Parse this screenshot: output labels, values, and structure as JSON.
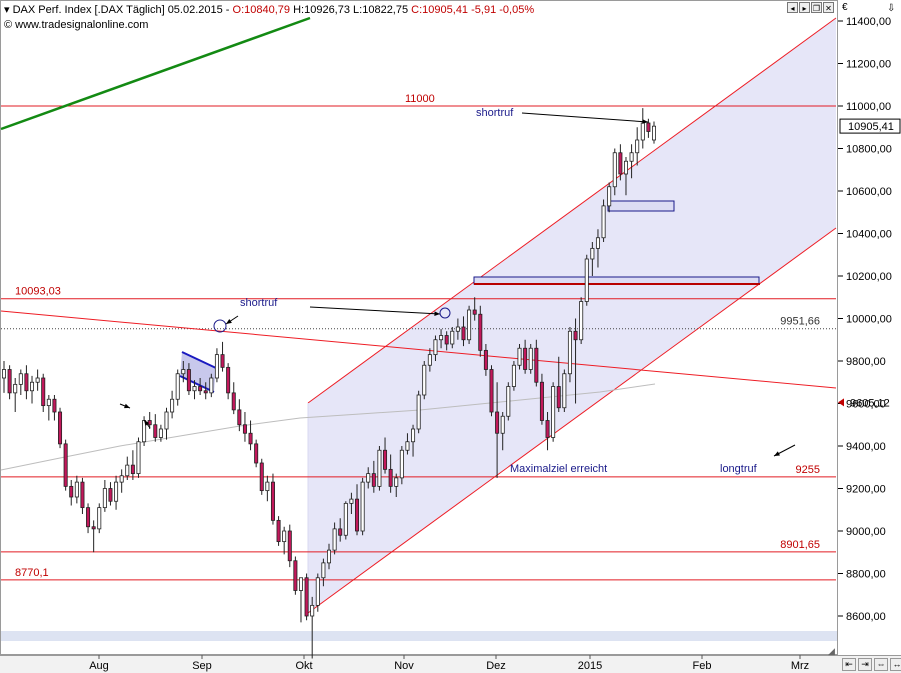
{
  "header": {
    "symbol": "DAX Perf. Index [.DAX Täglich]",
    "date": "05.02.2015",
    "open": "O:10840,79",
    "high": "H:10926,73",
    "low": "L:10822,75",
    "close": "C:10905,41",
    "change": "-5,91",
    "change_pct": "-0,05%",
    "credit": "© www.tradesignalonline.com"
  },
  "chart_data": {
    "type": "candlestick",
    "y_axis_ticks": [
      "11400,00",
      "11200,00",
      "11000,00",
      "10800,00",
      "10600,00",
      "10400,00",
      "10200,00",
      "10000,00",
      "9800,00",
      "9600,00",
      "9400,00",
      "9200,00",
      "9000,00",
      "8800,00",
      "8600,00"
    ],
    "y_tick_values": [
      11400,
      11200,
      11000,
      10800,
      10600,
      10400,
      10200,
      10000,
      9800,
      9600,
      9400,
      9200,
      9000,
      8800,
      8600
    ],
    "ylim": [
      8470,
      11590
    ],
    "x_axis_labels": [
      "Aug",
      "Sep",
      "Okt",
      "Nov",
      "Dez",
      "2015",
      "Feb",
      "Mrz"
    ],
    "last_price_label": "10905,41",
    "marker_label": "9605,12",
    "horizontal_levels": [
      {
        "label": "11000",
        "value": 11000
      },
      {
        "label": "10093,03",
        "value": 10093
      },
      {
        "label": "9951,66",
        "value": 9952
      },
      {
        "label": "9255",
        "value": 9255
      },
      {
        "label": "8901,65",
        "value": 8901.65
      },
      {
        "label": "8770,1",
        "value": 8770.1
      }
    ],
    "annotations": [
      "shortruf",
      "shortruf",
      "Maximalziel erreicht",
      "longtruf"
    ],
    "candles": [
      [
        9720,
        9800,
        9650,
        9760
      ],
      [
        9760,
        9780,
        9620,
        9650
      ],
      [
        9650,
        9720,
        9560,
        9690
      ],
      [
        9690,
        9760,
        9640,
        9740
      ],
      [
        9740,
        9780,
        9620,
        9660
      ],
      [
        9660,
        9730,
        9600,
        9700
      ],
      [
        9700,
        9760,
        9660,
        9720
      ],
      [
        9720,
        9740,
        9560,
        9590
      ],
      [
        9590,
        9640,
        9520,
        9620
      ],
      [
        9620,
        9640,
        9520,
        9560
      ],
      [
        9560,
        9580,
        9390,
        9410
      ],
      [
        9410,
        9430,
        9190,
        9210
      ],
      [
        9210,
        9240,
        9120,
        9160
      ],
      [
        9160,
        9260,
        9130,
        9230
      ],
      [
        9230,
        9250,
        9080,
        9110
      ],
      [
        9110,
        9130,
        8990,
        9020
      ],
      [
        9020,
        9050,
        8900,
        9010
      ],
      [
        9010,
        9130,
        8990,
        9110
      ],
      [
        9110,
        9240,
        9090,
        9200
      ],
      [
        9200,
        9230,
        9120,
        9140
      ],
      [
        9140,
        9260,
        9100,
        9230
      ],
      [
        9230,
        9290,
        9180,
        9260
      ],
      [
        9260,
        9350,
        9240,
        9310
      ],
      [
        9310,
        9380,
        9240,
        9270
      ],
      [
        9270,
        9440,
        9250,
        9420
      ],
      [
        9420,
        9540,
        9400,
        9520
      ],
      [
        9520,
        9560,
        9480,
        9500
      ],
      [
        9500,
        9550,
        9420,
        9440
      ],
      [
        9440,
        9500,
        9420,
        9480
      ],
      [
        9480,
        9580,
        9430,
        9560
      ],
      [
        9560,
        9660,
        9530,
        9620
      ],
      [
        9620,
        9760,
        9590,
        9740
      ],
      [
        9740,
        9800,
        9700,
        9760
      ],
      [
        9760,
        9790,
        9640,
        9660
      ],
      [
        9660,
        9710,
        9620,
        9680
      ],
      [
        9680,
        9720,
        9640,
        9660
      ],
      [
        9660,
        9700,
        9620,
        9650
      ],
      [
        9650,
        9740,
        9630,
        9720
      ],
      [
        9720,
        9860,
        9700,
        9830
      ],
      [
        9830,
        9890,
        9750,
        9770
      ],
      [
        9770,
        9790,
        9620,
        9650
      ],
      [
        9650,
        9700,
        9550,
        9570
      ],
      [
        9570,
        9620,
        9470,
        9500
      ],
      [
        9500,
        9560,
        9420,
        9460
      ],
      [
        9460,
        9520,
        9380,
        9410
      ],
      [
        9410,
        9430,
        9300,
        9320
      ],
      [
        9320,
        9340,
        9170,
        9190
      ],
      [
        9190,
        9260,
        9140,
        9230
      ],
      [
        9230,
        9270,
        9030,
        9050
      ],
      [
        9050,
        9070,
        8930,
        8950
      ],
      [
        8950,
        9020,
        8890,
        9000
      ],
      [
        9000,
        9030,
        8830,
        8860
      ],
      [
        8860,
        8880,
        8700,
        8720
      ],
      [
        8720,
        8780,
        8570,
        8780
      ],
      [
        8780,
        8800,
        8580,
        8600
      ],
      [
        8600,
        8690,
        8400,
        8650
      ],
      [
        8650,
        8800,
        8620,
        8780
      ],
      [
        8780,
        8870,
        8740,
        8850
      ],
      [
        8850,
        8940,
        8820,
        8910
      ],
      [
        8910,
        9040,
        8890,
        9010
      ],
      [
        9010,
        9060,
        8950,
        8980
      ],
      [
        8980,
        9140,
        8960,
        9130
      ],
      [
        9130,
        9180,
        9080,
        9150
      ],
      [
        9150,
        9220,
        8980,
        9000
      ],
      [
        9000,
        9250,
        8980,
        9230
      ],
      [
        9230,
        9300,
        9200,
        9270
      ],
      [
        9270,
        9330,
        9180,
        9210
      ],
      [
        9210,
        9400,
        9190,
        9380
      ],
      [
        9380,
        9440,
        9270,
        9290
      ],
      [
        9290,
        9360,
        9180,
        9210
      ],
      [
        9210,
        9270,
        9160,
        9250
      ],
      [
        9250,
        9400,
        9220,
        9380
      ],
      [
        9380,
        9460,
        9360,
        9420
      ],
      [
        9420,
        9500,
        9350,
        9480
      ],
      [
        9480,
        9660,
        9460,
        9640
      ],
      [
        9640,
        9800,
        9620,
        9780
      ],
      [
        9780,
        9860,
        9750,
        9830
      ],
      [
        9830,
        9920,
        9800,
        9900
      ],
      [
        9900,
        9950,
        9860,
        9920
      ],
      [
        9920,
        9940,
        9850,
        9880
      ],
      [
        9880,
        9960,
        9860,
        9940
      ],
      [
        9940,
        10000,
        9900,
        9960
      ],
      [
        9960,
        10010,
        9870,
        9900
      ],
      [
        9900,
        10060,
        9880,
        10040
      ],
      [
        10040,
        10100,
        9990,
        10020
      ],
      [
        10020,
        10060,
        9820,
        9850
      ],
      [
        9850,
        9880,
        9730,
        9760
      ],
      [
        9760,
        9780,
        9540,
        9560
      ],
      [
        9560,
        9700,
        9250,
        9460
      ],
      [
        9460,
        9560,
        9380,
        9540
      ],
      [
        9540,
        9700,
        9520,
        9680
      ],
      [
        9680,
        9800,
        9660,
        9780
      ],
      [
        9780,
        9880,
        9760,
        9860
      ],
      [
        9860,
        9900,
        9740,
        9760
      ],
      [
        9760,
        9880,
        9740,
        9860
      ],
      [
        9860,
        9900,
        9680,
        9700
      ],
      [
        9700,
        9740,
        9500,
        9520
      ],
      [
        9520,
        9560,
        9380,
        9440
      ],
      [
        9440,
        9700,
        9420,
        9680
      ],
      [
        9680,
        9820,
        9560,
        9580
      ],
      [
        9580,
        9760,
        9560,
        9740
      ],
      [
        9740,
        9960,
        9700,
        9940
      ],
      [
        9940,
        10000,
        9600,
        9900
      ],
      [
        9900,
        10100,
        9880,
        10080
      ],
      [
        10080,
        10300,
        10060,
        10280
      ],
      [
        10280,
        10360,
        10200,
        10330
      ],
      [
        10330,
        10420,
        10240,
        10380
      ],
      [
        10380,
        10560,
        10360,
        10530
      ],
      [
        10530,
        10640,
        10500,
        10620
      ],
      [
        10620,
        10800,
        10580,
        10780
      ],
      [
        10780,
        10820,
        10650,
        10680
      ],
      [
        10680,
        10760,
        10580,
        10740
      ],
      [
        10740,
        10820,
        10660,
        10780
      ],
      [
        10780,
        10900,
        10720,
        10840
      ],
      [
        10840,
        10990,
        10800,
        10920
      ],
      [
        10920,
        10940,
        10850,
        10880
      ],
      [
        10840,
        10927,
        10823,
        10905
      ]
    ]
  }
}
